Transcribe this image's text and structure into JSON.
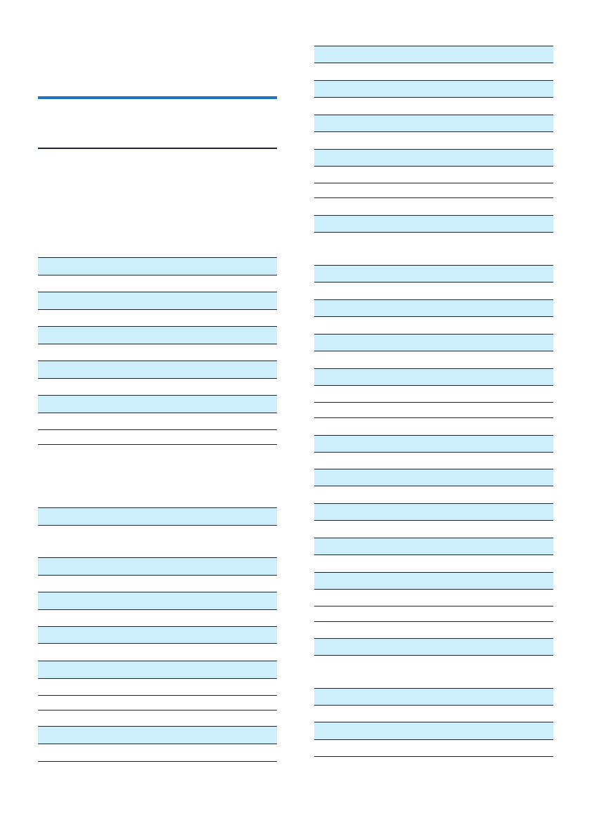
{
  "colors": {
    "accent_rule": "#1a73c8",
    "row_shade": "#cdeefb",
    "row_plain": "#ffffff",
    "line": "#1c2530"
  }
}
